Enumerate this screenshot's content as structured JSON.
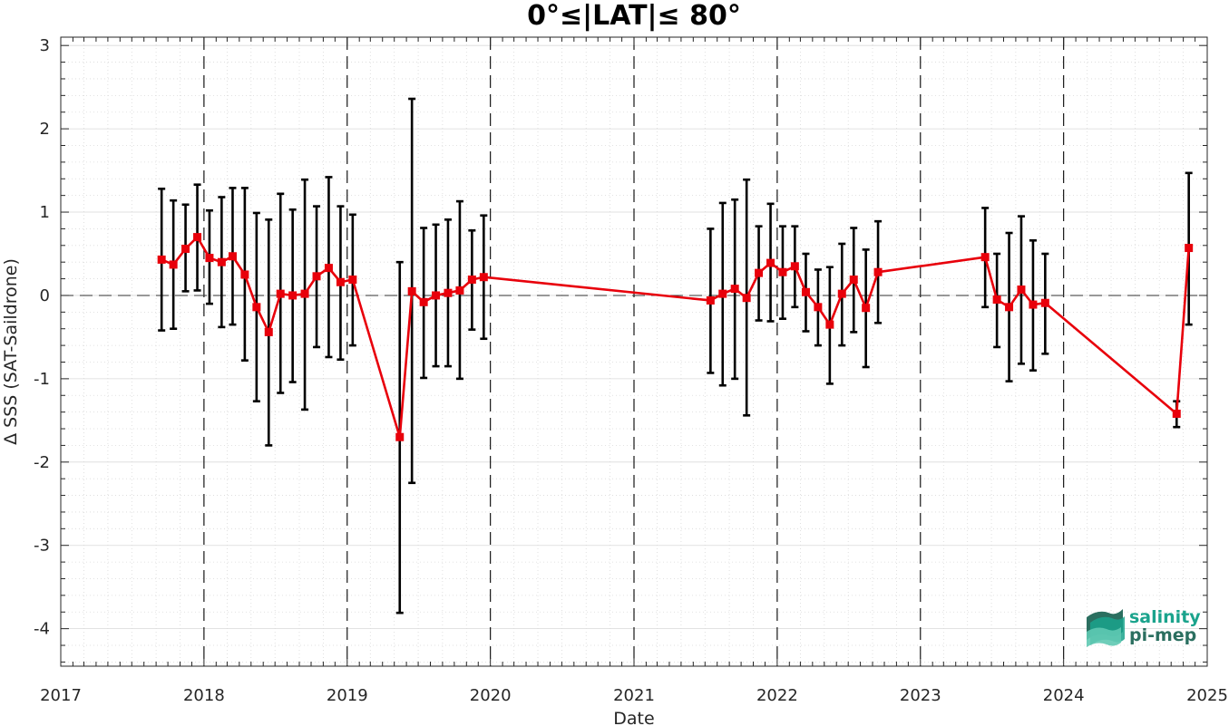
{
  "chart_data": {
    "type": "line",
    "title": "0°≤|LAT|≤ 80°",
    "xlabel": "Date",
    "ylabel": "Δ SSS (SAT-Saildrone)",
    "xlim": [
      "2017-01-01",
      "2025-01-01"
    ],
    "ylim": [
      -4.45,
      3.1
    ],
    "x_ticks": [
      "2017",
      "2018",
      "2019",
      "2020",
      "2021",
      "2022",
      "2023",
      "2024",
      "2025"
    ],
    "y_ticks": [
      "3",
      "2",
      "1",
      "0",
      "-1",
      "-2",
      "-3",
      "-4"
    ],
    "grid": true,
    "zero_line": true,
    "year_boundaries_dashed": true,
    "colors": {
      "series": "#e8000b",
      "errorbar": "#000000",
      "grid": "#d9d9d9"
    },
    "series": [
      {
        "points": [
          {
            "x": "2017-09-15",
            "y": 0.43,
            "lo": -0.42,
            "hi": 1.28
          },
          {
            "x": "2017-10-15",
            "y": 0.37,
            "lo": -0.4,
            "hi": 1.14
          },
          {
            "x": "2017-11-15",
            "y": 0.56,
            "lo": 0.05,
            "hi": 1.09
          },
          {
            "x": "2017-12-15",
            "y": 0.7,
            "lo": 0.06,
            "hi": 1.33
          },
          {
            "x": "2018-01-15",
            "y": 0.45,
            "lo": -0.1,
            "hi": 1.02
          },
          {
            "x": "2018-02-15",
            "y": 0.4,
            "lo": -0.38,
            "hi": 1.18
          },
          {
            "x": "2018-03-15",
            "y": 0.47,
            "lo": -0.35,
            "hi": 1.29
          },
          {
            "x": "2018-04-15",
            "y": 0.25,
            "lo": -0.78,
            "hi": 1.29
          },
          {
            "x": "2018-05-15",
            "y": -0.14,
            "lo": -1.27,
            "hi": 0.99
          },
          {
            "x": "2018-06-15",
            "y": -0.44,
            "lo": -1.8,
            "hi": 0.91
          },
          {
            "x": "2018-07-15",
            "y": 0.02,
            "lo": -1.17,
            "hi": 1.22
          },
          {
            "x": "2018-08-15",
            "y": 0.0,
            "lo": -1.04,
            "hi": 1.03
          },
          {
            "x": "2018-09-15",
            "y": 0.02,
            "lo": -1.37,
            "hi": 1.39
          },
          {
            "x": "2018-10-15",
            "y": 0.23,
            "lo": -0.62,
            "hi": 1.07
          },
          {
            "x": "2018-11-15",
            "y": 0.33,
            "lo": -0.74,
            "hi": 1.42
          },
          {
            "x": "2018-12-15",
            "y": 0.16,
            "lo": -0.77,
            "hi": 1.07
          },
          {
            "x": "2019-01-15",
            "y": 0.19,
            "lo": -0.6,
            "hi": 0.97
          },
          {
            "x": "2019-05-15",
            "y": -1.7,
            "lo": -3.81,
            "hi": 0.4
          },
          {
            "x": "2019-06-15",
            "y": 0.05,
            "lo": -2.25,
            "hi": 2.36
          },
          {
            "x": "2019-07-15",
            "y": -0.08,
            "lo": -0.99,
            "hi": 0.81
          },
          {
            "x": "2019-08-15",
            "y": 0.0,
            "lo": -0.85,
            "hi": 0.85
          },
          {
            "x": "2019-09-15",
            "y": 0.03,
            "lo": -0.85,
            "hi": 0.91
          },
          {
            "x": "2019-10-15",
            "y": 0.06,
            "lo": -1.0,
            "hi": 1.13
          },
          {
            "x": "2019-11-15",
            "y": 0.19,
            "lo": -0.41,
            "hi": 0.78
          },
          {
            "x": "2019-12-15",
            "y": 0.22,
            "lo": -0.52,
            "hi": 0.96
          },
          {
            "x": "2021-07-15",
            "y": -0.06,
            "lo": -0.93,
            "hi": 0.8
          },
          {
            "x": "2021-08-15",
            "y": 0.02,
            "lo": -1.08,
            "hi": 1.11
          },
          {
            "x": "2021-09-15",
            "y": 0.08,
            "lo": -1.0,
            "hi": 1.15
          },
          {
            "x": "2021-10-15",
            "y": -0.03,
            "lo": -1.44,
            "hi": 1.39
          },
          {
            "x": "2021-11-15",
            "y": 0.27,
            "lo": -0.3,
            "hi": 0.83
          },
          {
            "x": "2021-12-15",
            "y": 0.39,
            "lo": -0.31,
            "hi": 1.1
          },
          {
            "x": "2022-01-15",
            "y": 0.28,
            "lo": -0.28,
            "hi": 0.83
          },
          {
            "x": "2022-02-15",
            "y": 0.35,
            "lo": -0.14,
            "hi": 0.83
          },
          {
            "x": "2022-03-15",
            "y": 0.04,
            "lo": -0.43,
            "hi": 0.5
          },
          {
            "x": "2022-04-15",
            "y": -0.14,
            "lo": -0.6,
            "hi": 0.31
          },
          {
            "x": "2022-05-15",
            "y": -0.35,
            "lo": -1.06,
            "hi": 0.34
          },
          {
            "x": "2022-06-15",
            "y": 0.02,
            "lo": -0.6,
            "hi": 0.62
          },
          {
            "x": "2022-07-15",
            "y": 0.19,
            "lo": -0.44,
            "hi": 0.81
          },
          {
            "x": "2022-08-15",
            "y": -0.15,
            "lo": -0.86,
            "hi": 0.55
          },
          {
            "x": "2022-09-15",
            "y": 0.28,
            "lo": -0.33,
            "hi": 0.89
          },
          {
            "x": "2023-06-15",
            "y": 0.46,
            "lo": -0.14,
            "hi": 1.05
          },
          {
            "x": "2023-07-15",
            "y": -0.05,
            "lo": -0.62,
            "hi": 0.5
          },
          {
            "x": "2023-08-15",
            "y": -0.14,
            "lo": -1.03,
            "hi": 0.75
          },
          {
            "x": "2023-09-15",
            "y": 0.07,
            "lo": -0.82,
            "hi": 0.95
          },
          {
            "x": "2023-10-15",
            "y": -0.11,
            "lo": -0.9,
            "hi": 0.66
          },
          {
            "x": "2023-11-15",
            "y": -0.09,
            "lo": -0.7,
            "hi": 0.5
          },
          {
            "x": "2024-10-15",
            "y": -1.42,
            "lo": -1.58,
            "hi": -1.27
          },
          {
            "x": "2024-11-15",
            "y": 0.57,
            "lo": -0.35,
            "hi": 1.47
          }
        ]
      }
    ]
  },
  "logo": {
    "line1": "salinity",
    "line2": "pi-mep",
    "colors": [
      "#1aa38c",
      "#2b6f60",
      "#5fc9b2"
    ]
  }
}
